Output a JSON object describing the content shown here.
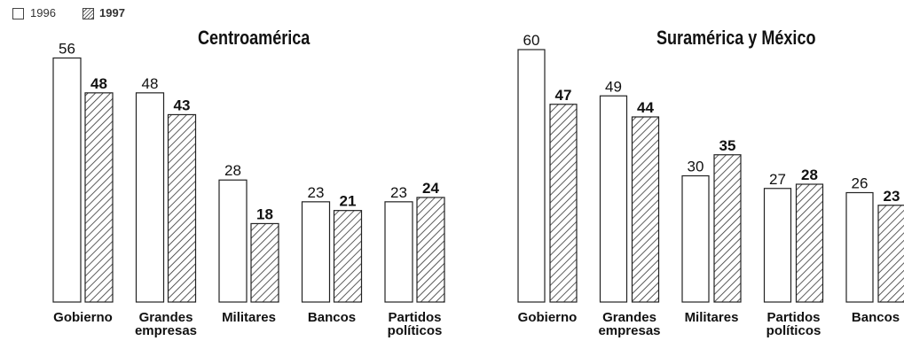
{
  "legend": [
    {
      "label": "1996",
      "style": "plain"
    },
    {
      "label": "1997",
      "style": "hatched"
    }
  ],
  "colors": {
    "stroke": "#222222",
    "hatch": "#333333",
    "fill": "#ffffff",
    "text": "#111111"
  },
  "chart_data": [
    {
      "type": "bar",
      "title": "Centroamérica",
      "categories": [
        [
          "Gobierno"
        ],
        [
          "Grandes",
          "empresas"
        ],
        [
          "Militares"
        ],
        [
          "Bancos"
        ],
        [
          "Partidos",
          "políticos"
        ]
      ],
      "series": [
        {
          "name": "1996",
          "values": [
            56,
            48,
            28,
            23,
            23
          ]
        },
        {
          "name": "1997",
          "values": [
            48,
            43,
            18,
            21,
            24
          ]
        }
      ],
      "ylim": [
        0,
        60
      ],
      "grid": false
    },
    {
      "type": "bar",
      "title": "Suramérica y México",
      "categories": [
        [
          "Gobierno"
        ],
        [
          "Grandes",
          "empresas"
        ],
        [
          "Militares"
        ],
        [
          "Partidos",
          "políticos"
        ],
        [
          "Bancos"
        ]
      ],
      "series": [
        {
          "name": "1996",
          "values": [
            60,
            49,
            30,
            27,
            26
          ]
        },
        {
          "name": "1997",
          "values": [
            47,
            44,
            35,
            28,
            23
          ]
        }
      ],
      "ylim": [
        0,
        60
      ],
      "grid": false
    }
  ]
}
